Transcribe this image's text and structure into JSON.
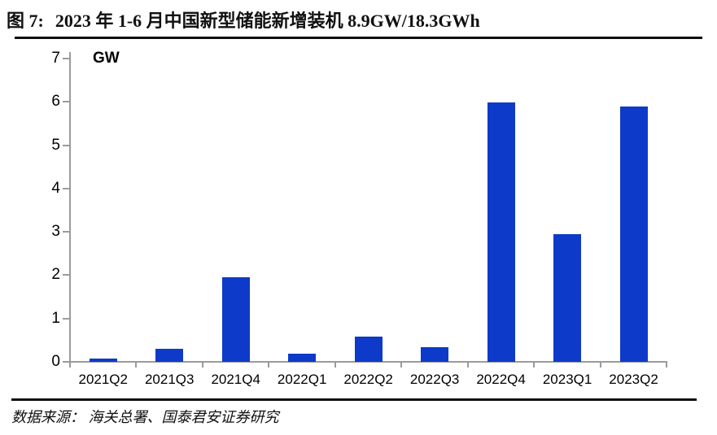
{
  "figure": {
    "title_prefix": "图 7:",
    "title_text": "2023 年 1-6 月中国新型储能新增装机 8.9GW/18.3GWh",
    "source": "数据来源： 海关总署、国泰君安证券研究"
  },
  "chart_data": {
    "type": "bar",
    "title": "2023 年 1-6 月中国新型储能新增装机 8.9GW/18.3GWh",
    "unit_label": "GW",
    "categories": [
      "2021Q2",
      "2021Q3",
      "2021Q4",
      "2022Q1",
      "2022Q2",
      "2022Q3",
      "2022Q4",
      "2023Q1",
      "2023Q2"
    ],
    "values": [
      0.08,
      0.3,
      1.95,
      0.18,
      0.58,
      0.33,
      5.98,
      2.95,
      5.9
    ],
    "xlabel": "",
    "ylabel": "GW",
    "ylim": [
      0,
      7
    ],
    "yticks": [
      0,
      1,
      2,
      3,
      4,
      5,
      6,
      7
    ],
    "grid": false,
    "legend": false,
    "bar_color": "#0d3ac8",
    "axis_color": "#9b9b9b",
    "text_color": "#000000"
  }
}
